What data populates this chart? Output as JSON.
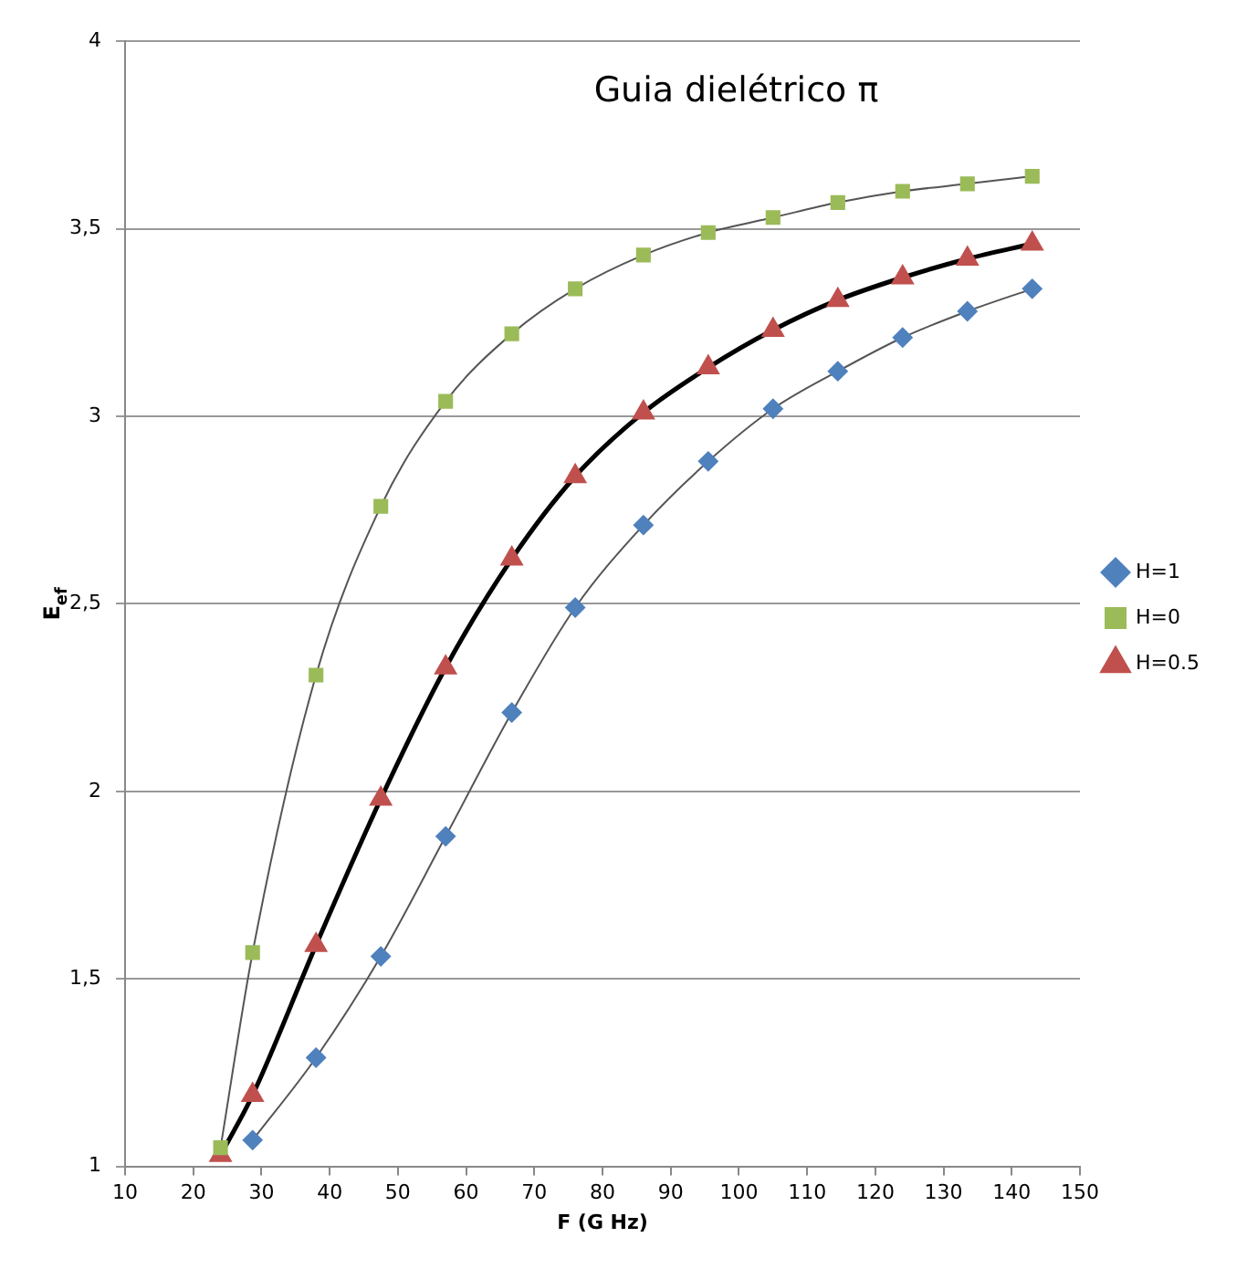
{
  "chart_data": {
    "type": "line",
    "title": "Guia dielétrico π",
    "xlabel": "F (G Hz)",
    "ylabel": "E$_{ef}$",
    "xlim": [
      10,
      150
    ],
    "xticks": [
      10,
      20,
      30,
      40,
      50,
      60,
      70,
      80,
      90,
      100,
      110,
      120,
      130,
      140,
      150
    ],
    "ylim": [
      1,
      4
    ],
    "yticks": [
      {
        "value": 1,
        "label": "1"
      },
      {
        "value": 1.5,
        "label": "1,5"
      },
      {
        "value": 2,
        "label": "2"
      },
      {
        "value": 2.5,
        "label": "2,5"
      },
      {
        "value": 3,
        "label": "3"
      },
      {
        "value": 3.5,
        "label": "3,5"
      },
      {
        "value": 4,
        "label": "4"
      }
    ],
    "grid": "y",
    "legend": "right",
    "line_style": "solid",
    "series": [
      {
        "name": "H=0.5",
        "color": "#c0504d",
        "marker": "triangle",
        "x": [
          24,
          28.7,
          38,
          47.5,
          57,
          66.7,
          76,
          86,
          95.5,
          105,
          114.5,
          124,
          133.5,
          143
        ],
        "values": [
          1.03,
          1.19,
          1.59,
          1.98,
          2.33,
          2.62,
          2.84,
          3.01,
          3.13,
          3.23,
          3.31,
          3.37,
          3.42,
          3.46
        ]
      },
      {
        "name": "H=0",
        "color": "#9bbb59",
        "marker": "square",
        "x": [
          24,
          28.7,
          38,
          47.5,
          57,
          66.7,
          76,
          86,
          95.5,
          105,
          114.5,
          124,
          133.5,
          143
        ],
        "values": [
          1.05,
          1.57,
          2.31,
          2.76,
          3.04,
          3.22,
          3.34,
          3.43,
          3.49,
          3.53,
          3.57,
          3.6,
          3.62,
          3.64
        ]
      },
      {
        "name": "H=1",
        "color": "#4f81bd",
        "marker": "diamond",
        "x": [
          28.7,
          38,
          47.5,
          57,
          66.7,
          76,
          86,
          95.5,
          105,
          114.5,
          124,
          133.5,
          143
        ],
        "values": [
          1.07,
          1.29,
          1.56,
          1.88,
          2.21,
          2.49,
          2.71,
          2.88,
          3.02,
          3.12,
          3.21,
          3.28,
          3.34
        ]
      }
    ]
  }
}
